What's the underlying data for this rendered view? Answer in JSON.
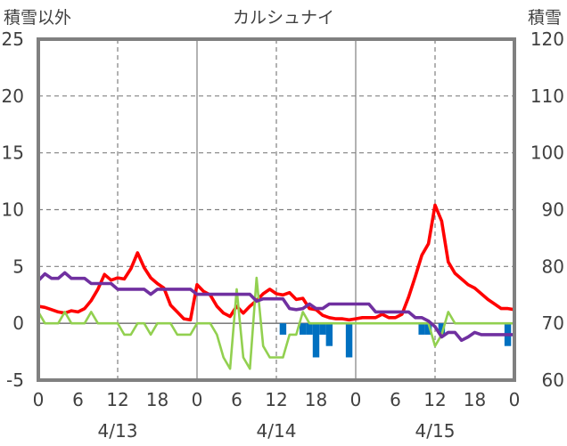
{
  "chart_data": {
    "type": "line",
    "title": "カルシュナイ",
    "y_left_label": "積雪以外",
    "y_right_label": "積雪",
    "y_left_range": [
      -5,
      25
    ],
    "y_left_ticks": [
      "25",
      "20",
      "15",
      "10",
      "5",
      "0",
      "-5"
    ],
    "y_right_range": [
      60,
      120
    ],
    "y_right_ticks": [
      "120",
      "110",
      "100",
      "90",
      "80",
      "70",
      "60"
    ],
    "x_range_hours": [
      0,
      72
    ],
    "x_tick_labels": [
      "0",
      "6",
      "12",
      "18",
      "0",
      "6",
      "12",
      "18",
      "0",
      "6",
      "12",
      "18",
      "0"
    ],
    "day_labels": [
      "4/13",
      "4/14",
      "4/15"
    ],
    "grid": true,
    "colors": {
      "red": "#ff0000",
      "green": "#92d050",
      "purple": "#7030a0",
      "blue": "#0070c0",
      "frame": "#808080"
    },
    "series": [
      {
        "color": "red",
        "axis": "left",
        "style": "line",
        "x": [
          0,
          1,
          2,
          3,
          4,
          5,
          6,
          7,
          8,
          9,
          10,
          11,
          12,
          13,
          14,
          15,
          16,
          17,
          18,
          19,
          20,
          21,
          22,
          23,
          24,
          25,
          26,
          27,
          28,
          29,
          30,
          31,
          32,
          33,
          34,
          35,
          36,
          37,
          38,
          39,
          40,
          41,
          42,
          43,
          44,
          45,
          46,
          47,
          48,
          49,
          50,
          51,
          52,
          53,
          54,
          55,
          56,
          57,
          58,
          59,
          60,
          61,
          62,
          63,
          64,
          65,
          66,
          67,
          68,
          69,
          70,
          71,
          72
        ],
        "y": [
          1.5,
          1.4,
          1.2,
          1.0,
          0.9,
          1.1,
          1.0,
          1.3,
          2.0,
          3.0,
          4.3,
          3.8,
          4.0,
          3.9,
          4.8,
          6.2,
          4.9,
          4.0,
          3.5,
          3.1,
          1.6,
          1.0,
          0.4,
          0.3,
          3.4,
          2.8,
          2.5,
          1.5,
          0.9,
          0.6,
          1.5,
          0.9,
          1.5,
          2.0,
          2.6,
          3.0,
          2.6,
          2.5,
          2.7,
          2.1,
          2.2,
          1.3,
          1.2,
          0.7,
          0.5,
          0.4,
          0.4,
          0.3,
          0.4,
          0.5,
          0.5,
          0.5,
          0.8,
          0.5,
          0.5,
          0.8,
          2.3,
          4.1,
          6.0,
          7.0,
          10.4,
          9.0,
          5.4,
          4.4,
          3.9,
          3.4,
          3.1,
          2.6,
          2.1,
          1.7,
          1.3,
          1.3,
          1.2
        ]
      },
      {
        "color": "green",
        "axis": "left",
        "style": "line",
        "x": [
          0,
          1,
          2,
          3,
          4,
          5,
          6,
          7,
          8,
          9,
          10,
          11,
          12,
          13,
          14,
          15,
          16,
          17,
          18,
          19,
          20,
          21,
          22,
          23,
          24,
          25,
          26,
          27,
          28,
          29,
          30,
          31,
          32,
          33,
          34,
          35,
          36,
          37,
          38,
          39,
          40,
          41,
          42,
          43,
          44,
          45,
          46,
          47,
          48,
          49,
          50,
          51,
          52,
          53,
          54,
          55,
          56,
          57,
          58,
          59,
          60,
          61,
          62,
          63,
          64,
          65,
          66,
          67,
          68,
          69,
          70,
          71,
          72
        ],
        "y": [
          1.0,
          0,
          0,
          0,
          1.0,
          0,
          0,
          0,
          1.0,
          0,
          0,
          0,
          0,
          -1.0,
          -1.0,
          0,
          0,
          -1.0,
          0,
          0,
          0,
          -1.0,
          -1.0,
          -1.0,
          0,
          0,
          0,
          -1.0,
          -3.0,
          -4.0,
          3.0,
          -3.0,
          -4.0,
          4.0,
          -2.0,
          -3.0,
          -3.0,
          -3.0,
          -1.0,
          -1.0,
          1.0,
          0,
          0,
          0,
          0,
          0,
          0,
          0,
          0,
          0,
          0,
          0,
          0,
          0,
          0,
          0,
          0,
          0,
          0,
          0,
          -2.0,
          -1.0,
          1.0,
          0,
          0,
          0,
          0,
          0,
          0,
          0,
          0,
          0,
          0
        ]
      },
      {
        "color": "purple",
        "axis": "right",
        "style": "line",
        "x": [
          0,
          1,
          2,
          3,
          4,
          5,
          6,
          7,
          8,
          9,
          10,
          11,
          12,
          13,
          14,
          15,
          16,
          17,
          18,
          19,
          20,
          21,
          22,
          23,
          24,
          25,
          26,
          27,
          28,
          29,
          30,
          31,
          32,
          33,
          34,
          35,
          36,
          37,
          38,
          39,
          40,
          41,
          42,
          43,
          44,
          45,
          46,
          47,
          48,
          49,
          50,
          51,
          52,
          53,
          54,
          55,
          56,
          57,
          58,
          59,
          60,
          61,
          62,
          63,
          64,
          65,
          66,
          67,
          68,
          69,
          70,
          71,
          72
        ],
        "y": [
          77.5,
          78.7,
          77.9,
          77.9,
          78.9,
          77.9,
          77.9,
          77.9,
          77.0,
          77.0,
          77.0,
          77.0,
          76.0,
          76.0,
          76.0,
          76.0,
          76.0,
          75.1,
          76.0,
          76.0,
          76.0,
          76.0,
          76.0,
          76.0,
          75.1,
          75.1,
          75.1,
          75.1,
          75.1,
          75.1,
          75.1,
          75.1,
          75.1,
          73.9,
          74.3,
          74.3,
          74.3,
          74.3,
          72.6,
          72.4,
          72.6,
          73.4,
          72.6,
          72.6,
          73.4,
          73.4,
          73.4,
          73.4,
          73.4,
          73.4,
          73.4,
          72.0,
          72.0,
          72.0,
          72.0,
          72.0,
          72.0,
          71.0,
          71.0,
          70.4,
          69.4,
          67.6,
          68.4,
          68.4,
          67.0,
          67.6,
          68.4,
          68.0,
          68.0,
          68.0,
          68.0,
          68.0,
          68.0
        ]
      },
      {
        "color": "blue",
        "axis": "left",
        "style": "bar",
        "x": [
          37,
          40,
          41,
          42,
          43,
          44,
          47,
          58,
          59,
          61,
          71
        ],
        "y": [
          -1.0,
          -1.0,
          -1.0,
          -3.0,
          -1.0,
          -2.0,
          -3.0,
          -1.0,
          -1.0,
          -1.0,
          -2.0
        ]
      }
    ]
  }
}
